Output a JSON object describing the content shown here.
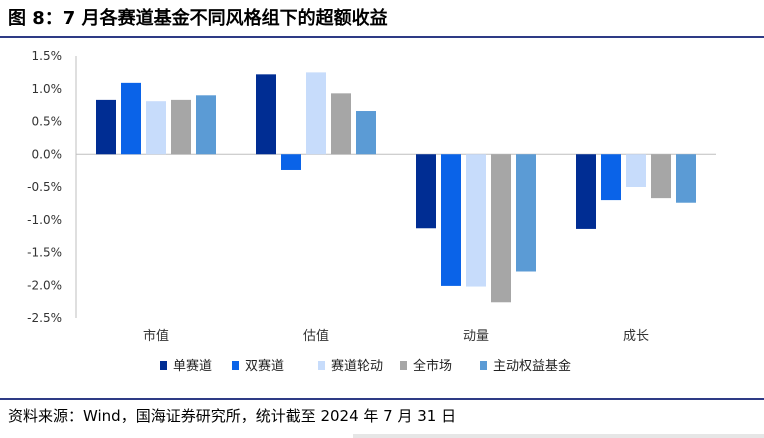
{
  "header": {
    "title": "图 8：7 月各赛道基金不同风格组下的超额收益"
  },
  "footer": {
    "source": "资料来源：Wind，国海证券研究所，统计截至 2024 年 7 月 31 日"
  },
  "chart_data": {
    "type": "bar",
    "title": "",
    "xlabel": "",
    "ylabel": "",
    "ylim": [
      -2.5,
      1.5
    ],
    "yticks": [
      1.5,
      1.0,
      0.5,
      0.0,
      -0.5,
      -1.0,
      -1.5,
      -2.0,
      -2.5
    ],
    "ytick_labels": [
      "1.5%",
      "1.0%",
      "0.5%",
      "0.0%",
      "-0.5%",
      "-1.0%",
      "-1.5%",
      "-2.0%",
      "-2.5%"
    ],
    "categories": [
      "市值",
      "估值",
      "动量",
      "成长"
    ],
    "legend_position": "bottom",
    "grid": false,
    "series": [
      {
        "name": "单赛道",
        "color": "#002d93",
        "values": [
          0.83,
          1.22,
          -1.13,
          -1.14
        ]
      },
      {
        "name": "双赛道",
        "color": "#0a63e8",
        "values": [
          1.09,
          -0.24,
          -2.01,
          -0.7
        ]
      },
      {
        "name": "赛道轮动",
        "color": "#c7dcfb",
        "values": [
          0.81,
          1.25,
          -2.02,
          -0.5
        ]
      },
      {
        "name": "全市场",
        "color": "#a6a6a6",
        "values": [
          0.83,
          0.93,
          -2.26,
          -0.67
        ]
      },
      {
        "name": "主动权益基金",
        "color": "#5b9bd5",
        "values": [
          0.9,
          0.66,
          -1.79,
          -0.74
        ]
      }
    ]
  }
}
